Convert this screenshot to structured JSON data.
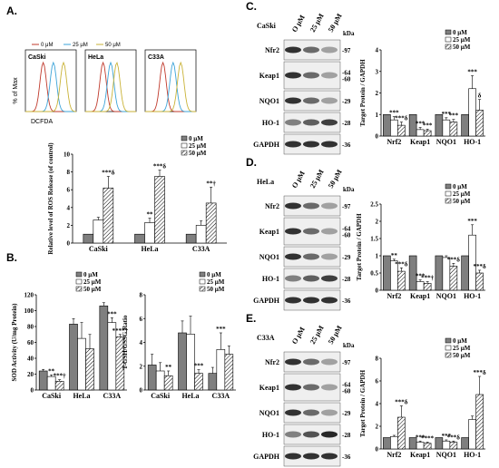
{
  "panels": {
    "A": "A.",
    "B": "B.",
    "C": "C.",
    "D": "D.",
    "E": "E."
  },
  "legend": [
    "0 μM",
    "25 μM",
    "50 μM"
  ],
  "colors": {
    "c0": "#7f7f7f",
    "c1": "#ffffff",
    "c2": "hatched",
    "flow0": "#c0392b",
    "flow1": "#3ba3d8",
    "flow2": "#c9b236"
  },
  "flow": {
    "ylabel": "% of Max",
    "xlabel": "DCFDA",
    "cells": [
      "CaSki",
      "HeLa",
      "C33A"
    ]
  },
  "blot_headers": [
    "0 μM",
    "25 μM",
    "50 μM"
  ],
  "blots": {
    "C": {
      "cell": "CaSki",
      "header_alt": [
        "O μM",
        "25 μM",
        "50 μM"
      ]
    },
    "D": {
      "cell": "HeLa",
      "header_alt": [
        "O μM",
        "25 μM",
        "50 μM"
      ]
    },
    "E": {
      "cell": "C33A",
      "header_alt": [
        "O μM",
        "25 μM",
        "50 μM"
      ]
    }
  },
  "blot_proteins": [
    "Nfr2",
    "Keap1",
    "NQO1",
    "HO-1",
    "GAPDH"
  ],
  "blot_kda_label": "kDa",
  "blot_kda": [
    "-97",
    "-64\n-60",
    "-29",
    "-28",
    "-36"
  ],
  "chart_data": [
    {
      "id": "ros",
      "type": "bar",
      "ylabel": "Relative level of ROS Release (of control)",
      "categories": [
        "CaSki",
        "HeLa",
        "C33A"
      ],
      "ylim": [
        0,
        10
      ],
      "yticks": [
        0,
        2,
        4,
        6,
        8,
        10
      ],
      "series": [
        {
          "name": "0 μM",
          "values": [
            1,
            1,
            1
          ]
        },
        {
          "name": "25 μM",
          "values": [
            2.6,
            2.3,
            2.0
          ]
        },
        {
          "name": "50 μM",
          "values": [
            6.2,
            7.5,
            4.5
          ]
        }
      ],
      "errors": [
        [
          0,
          0,
          0
        ],
        [
          0.3,
          0.5,
          0.5
        ],
        [
          1.3,
          0.7,
          1.8
        ]
      ],
      "sig": [
        [
          "",
          "",
          ""
        ],
        [
          "",
          "**",
          ""
        ],
        [
          "***δ",
          "***δ",
          "**†"
        ]
      ]
    },
    {
      "id": "sod",
      "type": "bar",
      "ylabel": "SOD Activity (U/mg Protein)",
      "categories": [
        "CaSki",
        "HeLa",
        "C33A"
      ],
      "ylim": [
        0,
        120
      ],
      "yticks": [
        0,
        20,
        40,
        60,
        80,
        100,
        120
      ],
      "series": [
        {
          "name": "0 μM",
          "values": [
            24,
            83,
            106
          ]
        },
        {
          "name": "25 μM",
          "values": [
            17,
            65,
            85
          ]
        },
        {
          "name": "50 μM",
          "values": [
            11,
            52,
            67
          ]
        }
      ],
      "errors": [
        [
          2,
          7,
          4
        ],
        [
          2,
          20,
          6
        ],
        [
          2,
          18,
          3
        ]
      ],
      "sig": [
        [
          "",
          "",
          ""
        ],
        [
          "**",
          "",
          "***"
        ],
        [
          "***†",
          "",
          "****†"
        ]
      ]
    },
    {
      "id": "gsh",
      "type": "bar",
      "ylabel": "T-GSH/GSSG Ratio",
      "categories": [
        "CaSki",
        "HeLa",
        "C33A"
      ],
      "ylim": [
        0,
        8
      ],
      "yticks": [
        0,
        2,
        4,
        6,
        8
      ],
      "series": [
        {
          "name": "0 μM",
          "values": [
            2.1,
            4.8,
            1.4
          ]
        },
        {
          "name": "25 μM",
          "values": [
            1.6,
            4.7,
            3.4
          ]
        },
        {
          "name": "50 μM",
          "values": [
            1.2,
            1.4,
            3.0
          ]
        }
      ],
      "errors": [
        [
          0.9,
          1.0,
          0.5
        ],
        [
          0.7,
          1.5,
          1.4
        ],
        [
          0.4,
          0.3,
          0.7
        ]
      ],
      "sig": [
        [
          "",
          "",
          ""
        ],
        [
          "",
          "",
          "***"
        ],
        [
          "**",
          "***",
          ""
        ]
      ]
    },
    {
      "id": "blotC",
      "type": "bar",
      "ylabel": "Target Protein / GAPDH",
      "categories": [
        "Nrf2",
        "Keap1",
        "NQO1",
        "HO-1"
      ],
      "ylim": [
        0,
        4
      ],
      "yticks": [
        0,
        1,
        2,
        3,
        4
      ],
      "series": [
        {
          "name": "0 μM",
          "values": [
            1,
            1,
            1,
            1
          ]
        },
        {
          "name": "25 μM",
          "values": [
            0.75,
            0.3,
            0.75,
            2.2
          ]
        },
        {
          "name": "50 μM",
          "values": [
            0.5,
            0.25,
            0.65,
            1.2
          ]
        }
      ],
      "errors": [
        [
          0,
          0,
          0,
          0
        ],
        [
          0.15,
          0.1,
          0.1,
          0.6
        ],
        [
          0.15,
          0.07,
          0.12,
          0.5
        ]
      ],
      "sig": [
        [
          "",
          "",
          "",
          ""
        ],
        [
          "***",
          "***",
          "***",
          "***"
        ],
        [
          "***δ",
          "***",
          "***",
          "δ"
        ]
      ]
    },
    {
      "id": "blotD",
      "type": "bar",
      "ylabel": "Target Protein / GAPDH",
      "categories": [
        "Nrf2",
        "Keap1",
        "NQO1",
        "HO-1"
      ],
      "ylim": [
        0,
        2.5
      ],
      "yticks": [
        0.0,
        0.5,
        1.0,
        1.5,
        2.0,
        2.5
      ],
      "series": [
        {
          "name": "0 μM",
          "values": [
            1,
            1,
            1,
            1
          ]
        },
        {
          "name": "25 μM",
          "values": [
            0.85,
            0.25,
            0.95,
            1.6
          ]
        },
        {
          "name": "50 μM",
          "values": [
            0.55,
            0.2,
            0.7,
            0.5
          ]
        }
      ],
      "errors": [
        [
          0,
          0,
          0,
          0
        ],
        [
          0.05,
          0.05,
          0.05,
          0.3
        ],
        [
          0.1,
          0.05,
          0.08,
          0.08
        ]
      ],
      "sig": [
        [
          "",
          "",
          "",
          ""
        ],
        [
          "**",
          "***",
          "",
          "***"
        ],
        [
          "***δ",
          "***†",
          "***δ",
          "***δ"
        ]
      ]
    },
    {
      "id": "blotE",
      "type": "bar",
      "ylabel": "Target Protein / GAPDH",
      "categories": [
        "Nrf2",
        "Keap1",
        "NQO1",
        "HO-1"
      ],
      "ylim": [
        0,
        8
      ],
      "yticks": [
        0,
        2,
        4,
        6,
        8
      ],
      "series": [
        {
          "name": "0 μM",
          "values": [
            1,
            1,
            1,
            1
          ]
        },
        {
          "name": "25 μM",
          "values": [
            1.1,
            0.6,
            0.7,
            2.6
          ]
        },
        {
          "name": "50 μM",
          "values": [
            2.8,
            0.5,
            0.6,
            4.8
          ]
        }
      ],
      "errors": [
        [
          0,
          0,
          0,
          0
        ],
        [
          0.1,
          0.1,
          0.1,
          0.3
        ],
        [
          1.0,
          0.1,
          0.1,
          1.6
        ]
      ],
      "sig": [
        [
          "",
          "",
          "",
          ""
        ],
        [
          "",
          "***",
          "***",
          ""
        ],
        [
          "***δ",
          "****",
          "***δ",
          "***δ"
        ]
      ]
    }
  ]
}
